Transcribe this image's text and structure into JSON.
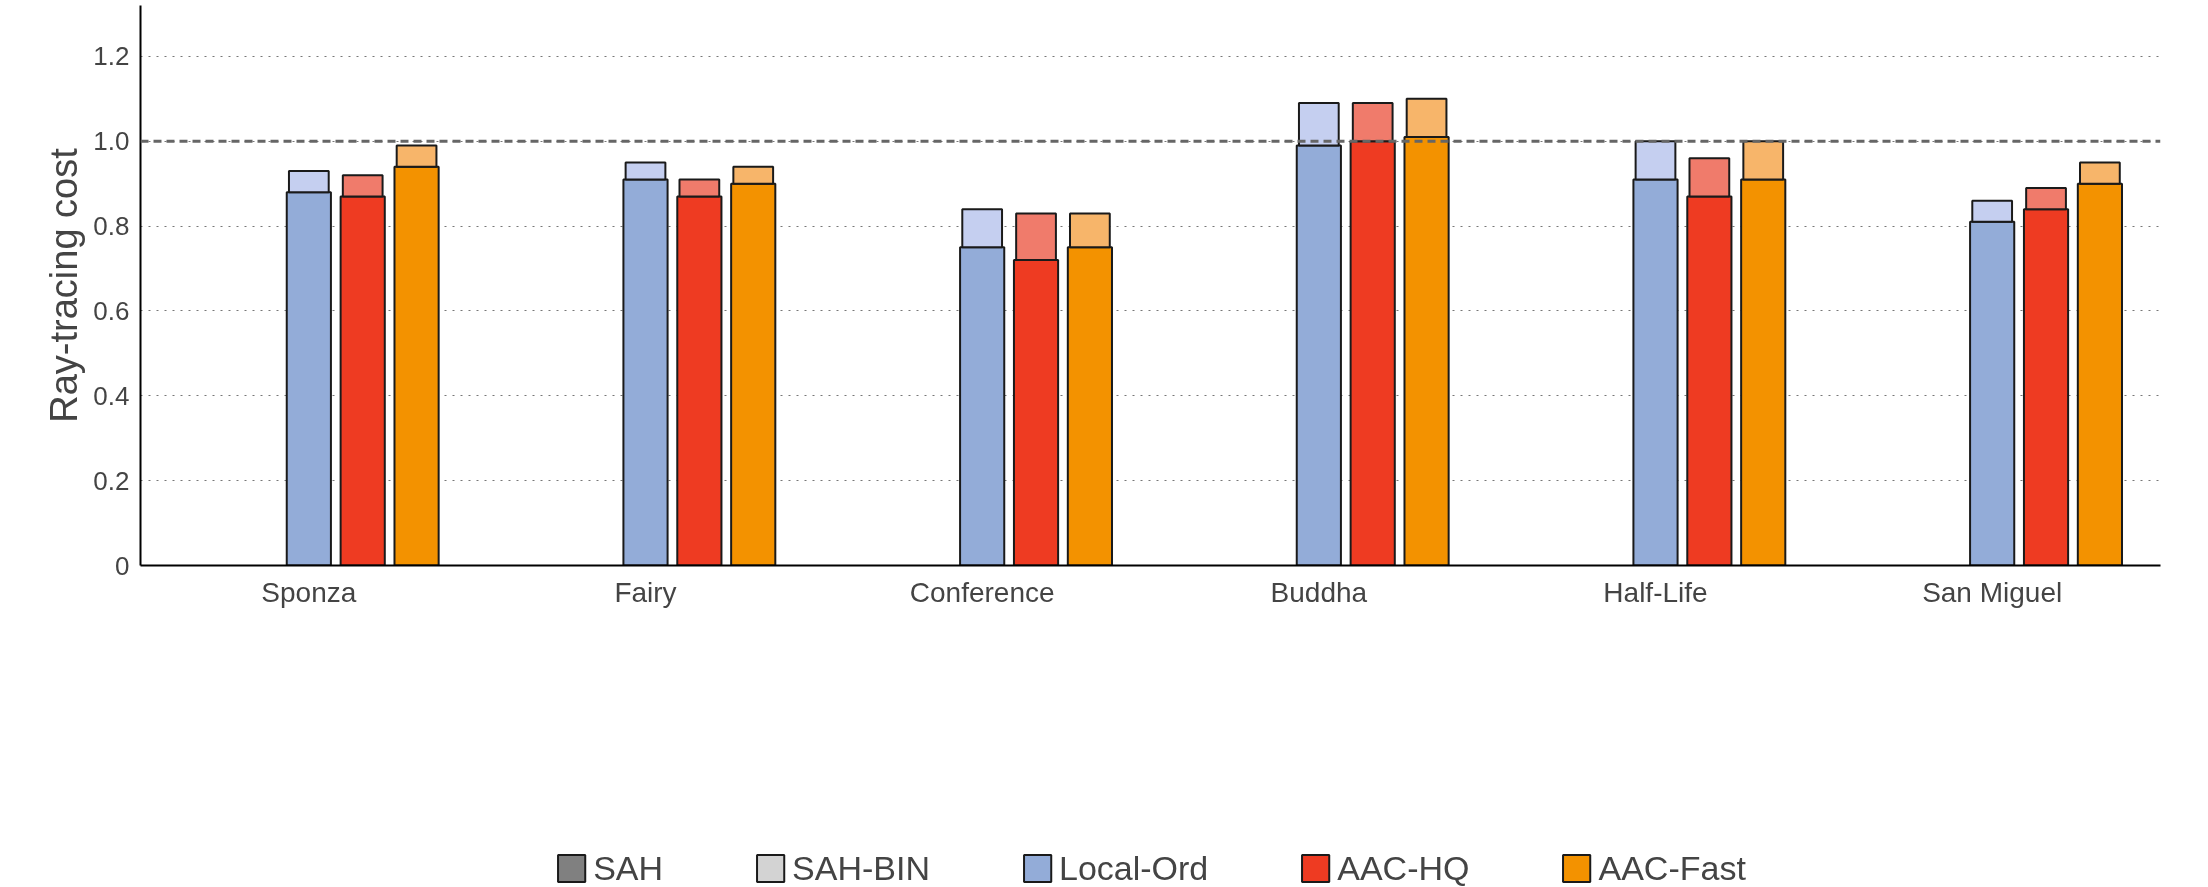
{
  "chart_data": {
    "type": "bar",
    "ylabel": "Ray-tracing cost",
    "categories": [
      "Sponza",
      "Fairy",
      "Conference",
      "Buddha",
      "Half-Life",
      "San Miguel"
    ],
    "series": [
      {
        "name": "SAH",
        "color": "#808080",
        "values": [
          null,
          null,
          null,
          null,
          null,
          null
        ]
      },
      {
        "name": "SAH-BIN",
        "color": "#d3d3d3",
        "values": [
          null,
          null,
          null,
          null,
          null,
          null
        ]
      },
      {
        "name": "Local-Ord",
        "color": "#93acd8",
        "values": [
          0.88,
          0.91,
          0.75,
          0.99,
          0.91,
          0.81
        ]
      },
      {
        "color": "#c5cff0",
        "values": [
          0.05,
          0.04,
          0.09,
          0.1,
          0.09,
          0.05
        ],
        "base": [
          0.88,
          0.91,
          0.75,
          0.99,
          0.91,
          0.81
        ]
      },
      {
        "name": "AAC-HQ",
        "color": "#ee3b22",
        "values": [
          0.87,
          0.87,
          0.72,
          1.0,
          0.87,
          0.84
        ]
      },
      {
        "color": "#f07b6b",
        "values": [
          0.05,
          0.04,
          0.11,
          0.09,
          0.09,
          0.05
        ],
        "base": [
          0.87,
          0.87,
          0.72,
          1.0,
          0.87,
          0.84
        ]
      },
      {
        "name": "AAC-Fast",
        "color": "#f39200",
        "values": [
          0.94,
          0.9,
          0.75,
          1.01,
          0.91,
          0.9
        ]
      },
      {
        "color": "#f7b56a",
        "values": [
          0.05,
          0.04,
          0.08,
          0.09,
          0.09,
          0.05
        ],
        "base": [
          0.94,
          0.9,
          0.75,
          1.01,
          0.91,
          0.9
        ]
      }
    ],
    "ylim": [
      0,
      1.32
    ],
    "yticks": [
      0,
      0.2,
      0.4,
      0.6,
      0.8,
      {
        "value": 1,
        "label": "1.0"
      },
      1.2
    ],
    "ref_lines": [
      {
        "axis": "y",
        "value": 1,
        "line_style": "dashed",
        "color": "#666666"
      }
    ],
    "grid": "y",
    "legend": "bottom"
  }
}
